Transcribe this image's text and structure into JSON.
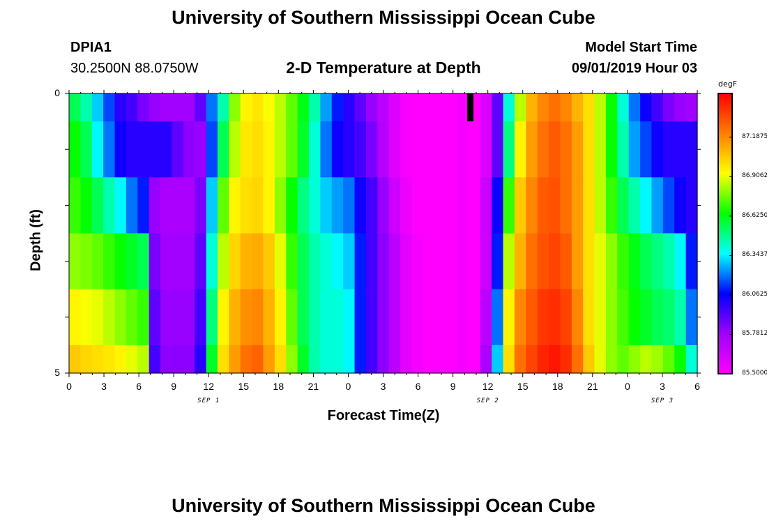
{
  "header": {
    "title": "University of Southern Mississippi Ocean Cube",
    "station": "DPIA1",
    "coords": "30.2500N 88.0750W",
    "plot_title": "2-D Temperature at Depth",
    "model_start_label": "Model Start Time",
    "model_start_value": "09/01/2019 Hour 03"
  },
  "footer": {
    "title": "University of Southern Mississippi Ocean Cube"
  },
  "colors": {
    "palette": [
      "#ff00ff",
      "#a000ff",
      "#0000ff",
      "#00ffff",
      "#00ff00",
      "#ffff00",
      "#ff8000",
      "#ff0000"
    ]
  },
  "chart_data": {
    "type": "heatmap",
    "title": "2-D Temperature at Depth",
    "xlabel": "Forecast Time(Z)",
    "ylabel": "Depth (ft)",
    "x_range_hours": [
      0,
      54
    ],
    "y_range_ft": [
      0,
      5
    ],
    "x_tick_labels": [
      "0",
      "3",
      "6",
      "9",
      "12",
      "15",
      "18",
      "21",
      "0",
      "3",
      "6",
      "9",
      "12",
      "15",
      "18",
      "21",
      "0",
      "3",
      "6"
    ],
    "y_tick_labels": [
      "0",
      "5"
    ],
    "date_labels": [
      {
        "label": "SEP 1",
        "hour": 12
      },
      {
        "label": "SEP 2",
        "hour": 36
      },
      {
        "label": "SEP 3",
        "hour": 51
      }
    ],
    "colorbar": {
      "unit": "degF",
      "min": 85.5,
      "max": 87.5,
      "labels": [
        "87.1875",
        "86.9062",
        "86.6250",
        "86.3437",
        "86.0625",
        "85.7812",
        "85.5000"
      ],
      "label_values": [
        87.1875,
        86.90625,
        86.625,
        86.34375,
        86.0625,
        85.78125,
        85.5
      ]
    },
    "depth_layers_ft": [
      0.5,
      1.5,
      2.5,
      3.5,
      4.5,
      5.0
    ],
    "temperature_profiles_degF": [
      [
        86.55,
        86.45,
        86.3,
        86.15,
        86.0,
        85.95,
        85.85,
        85.8,
        85.78,
        85.78,
        85.78,
        85.9,
        86.2,
        86.45,
        86.8,
        86.95,
        86.98,
        86.92,
        86.85,
        86.75,
        86.62,
        86.45,
        86.25,
        86.1,
        86.0,
        85.9,
        85.8,
        85.7,
        85.6,
        85.52,
        85.5,
        85.5,
        85.5,
        85.5,
        85.52,
        85.5,
        85.6,
        85.9,
        86.4,
        86.85,
        87.1,
        87.2,
        87.25,
        87.2,
        87.1,
        87.0,
        86.85,
        86.65,
        86.4,
        86.2,
        86.05,
        85.95,
        85.85,
        85.8,
        85.78
      ],
      [
        86.65,
        86.55,
        86.35,
        86.2,
        86.05,
        86.0,
        86.0,
        86.0,
        86.0,
        85.9,
        85.82,
        85.8,
        86.15,
        86.55,
        86.85,
        86.98,
        87.0,
        86.95,
        86.85,
        86.75,
        86.6,
        86.4,
        86.2,
        86.05,
        86.0,
        85.95,
        85.85,
        85.72,
        85.6,
        85.52,
        85.5,
        85.5,
        85.5,
        85.5,
        85.52,
        85.5,
        85.6,
        85.9,
        86.5,
        86.95,
        87.15,
        87.25,
        87.3,
        87.25,
        87.15,
        87.0,
        86.85,
        86.65,
        86.45,
        86.25,
        86.15,
        86.05,
        86.0,
        86.0,
        86.0
      ],
      [
        86.7,
        86.65,
        86.55,
        86.45,
        86.35,
        86.2,
        86.1,
        85.8,
        85.75,
        85.75,
        85.75,
        85.85,
        86.3,
        86.75,
        86.95,
        87.0,
        87.02,
        86.95,
        86.8,
        86.65,
        86.5,
        86.4,
        86.3,
        86.25,
        86.2,
        86.05,
        85.95,
        85.8,
        85.65,
        85.55,
        85.5,
        85.5,
        85.5,
        85.5,
        85.52,
        85.5,
        85.65,
        86.05,
        86.7,
        87.05,
        87.2,
        87.3,
        87.32,
        87.25,
        87.15,
        87.0,
        86.85,
        86.7,
        86.55,
        86.45,
        86.35,
        86.25,
        86.15,
        86.05,
        86.0
      ],
      [
        86.8,
        86.78,
        86.75,
        86.7,
        86.65,
        86.6,
        86.55,
        85.85,
        85.78,
        85.78,
        85.78,
        85.9,
        86.4,
        86.85,
        87.02,
        87.1,
        87.12,
        87.05,
        86.9,
        86.7,
        86.55,
        86.45,
        86.4,
        86.35,
        86.3,
        86.1,
        85.95,
        85.82,
        85.7,
        85.58,
        85.52,
        85.5,
        85.5,
        85.5,
        85.52,
        85.5,
        85.65,
        86.1,
        86.85,
        87.1,
        87.25,
        87.32,
        87.35,
        87.3,
        87.15,
        87.0,
        86.9,
        86.8,
        86.7,
        86.62,
        86.55,
        86.5,
        86.45,
        86.35,
        86.1
      ],
      [
        86.95,
        86.92,
        86.9,
        86.85,
        86.8,
        86.75,
        86.7,
        85.9,
        85.8,
        85.8,
        85.8,
        85.95,
        86.5,
        86.95,
        87.1,
        87.18,
        87.2,
        87.1,
        86.95,
        86.75,
        86.55,
        86.45,
        86.4,
        86.4,
        86.35,
        86.1,
        85.95,
        85.82,
        85.7,
        85.58,
        85.52,
        85.5,
        85.5,
        85.5,
        85.52,
        85.5,
        85.7,
        86.2,
        86.95,
        87.2,
        87.3,
        87.38,
        87.4,
        87.35,
        87.2,
        87.0,
        86.9,
        86.8,
        86.72,
        86.65,
        86.6,
        86.55,
        86.52,
        86.45,
        86.2
      ],
      [
        87.05,
        87.02,
        87.0,
        86.98,
        86.95,
        86.9,
        86.85,
        85.95,
        85.82,
        85.82,
        85.82,
        86.0,
        86.6,
        87.0,
        87.15,
        87.25,
        87.28,
        87.15,
        87.0,
        86.8,
        86.6,
        86.45,
        86.4,
        86.4,
        86.35,
        86.1,
        85.95,
        85.82,
        85.7,
        85.58,
        85.52,
        85.5,
        85.5,
        85.5,
        85.52,
        85.5,
        85.75,
        86.3,
        87.0,
        87.25,
        87.35,
        87.42,
        87.45,
        87.4,
        87.25,
        87.05,
        86.9,
        86.8,
        86.75,
        86.8,
        86.85,
        86.82,
        86.75,
        86.65,
        86.4
      ]
    ]
  }
}
